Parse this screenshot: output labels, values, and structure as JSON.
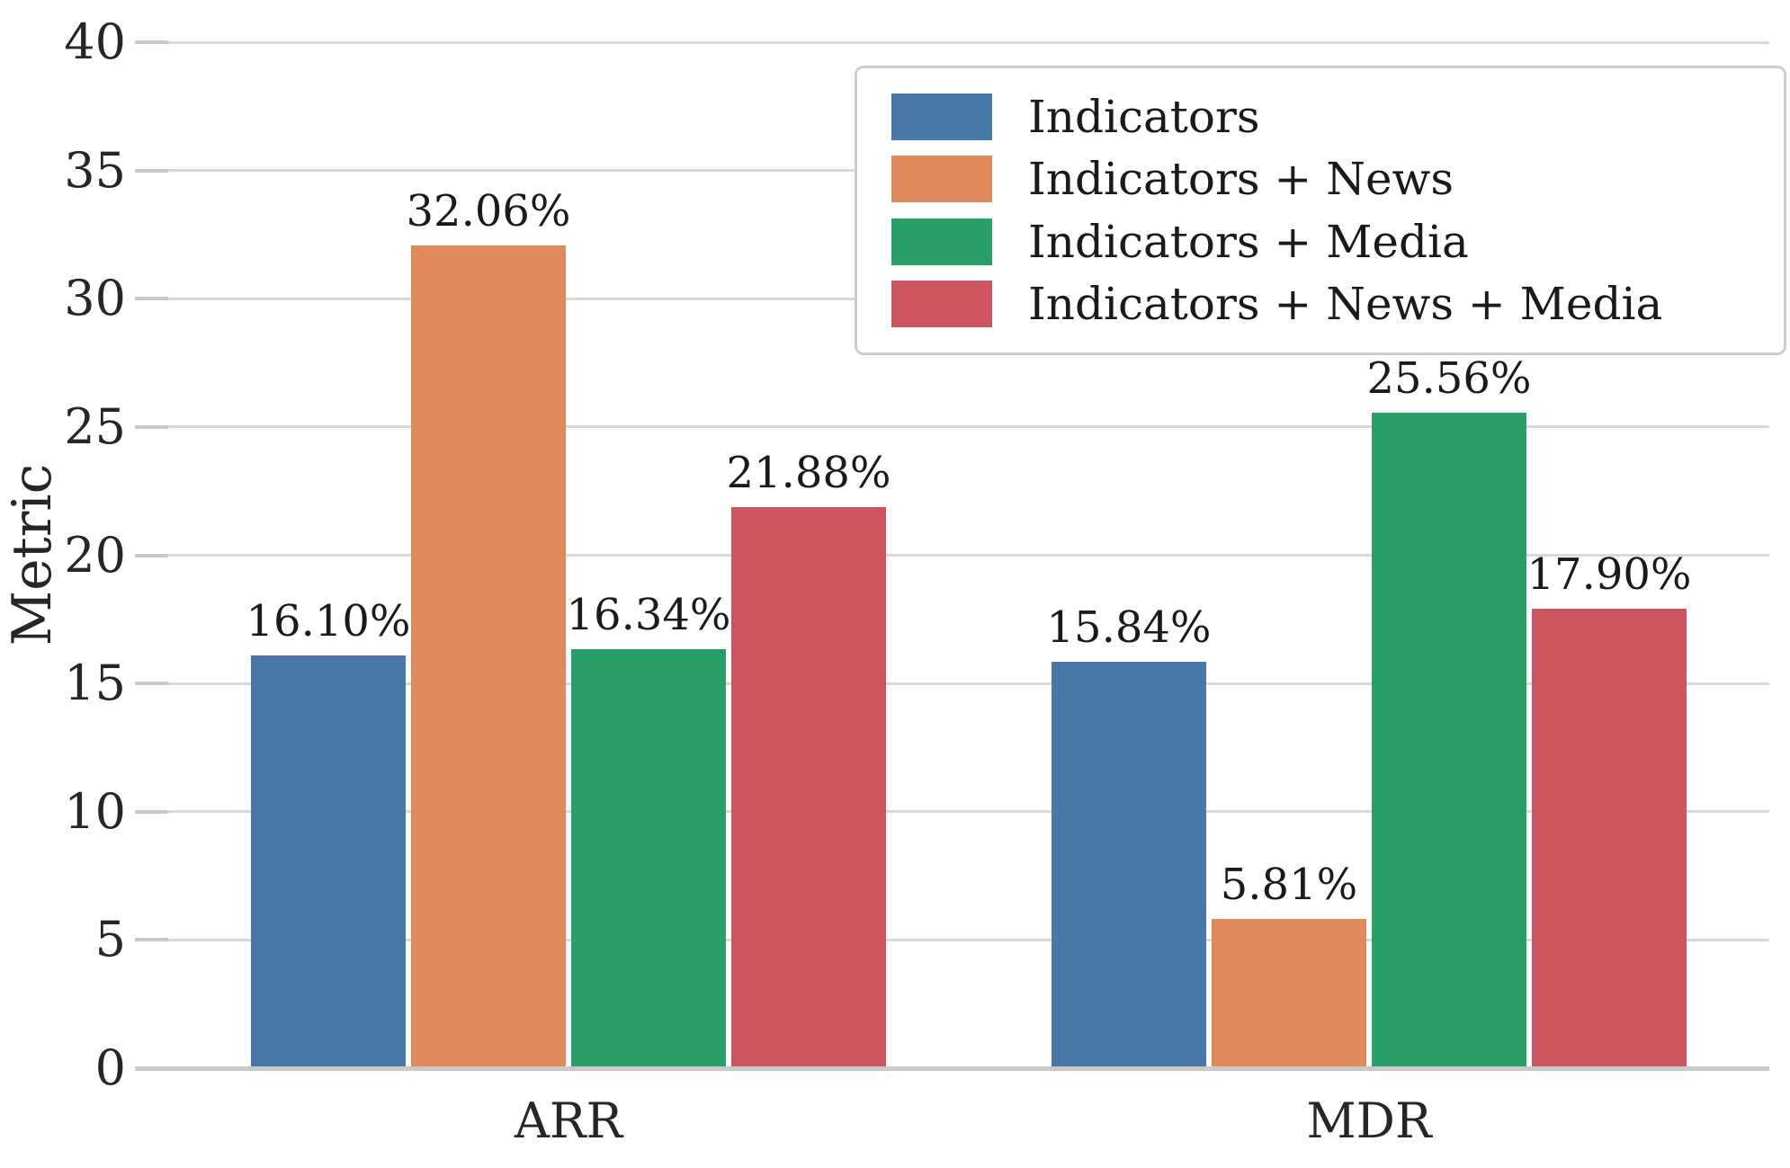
{
  "chart_data": {
    "type": "bar",
    "title": "",
    "categories": [
      "ARR",
      "MDR"
    ],
    "series": [
      {
        "name": "Indicators",
        "color": "#4878a8",
        "values": [
          16.1,
          15.84
        ],
        "labels": [
          "16.10%",
          "15.84%"
        ]
      },
      {
        "name": "Indicators + News",
        "color": "#e08a5c",
        "values": [
          32.06,
          5.81
        ],
        "labels": [
          "32.06%",
          "5.81%"
        ]
      },
      {
        "name": "Indicators + Media",
        "color": "#2aa069",
        "values": [
          16.34,
          25.56
        ],
        "labels": [
          "16.34%",
          "25.56%"
        ]
      },
      {
        "name": "Indicators + News + Media",
        "color": "#cc555f",
        "values": [
          21.88,
          17.9
        ],
        "labels": [
          "21.88%",
          "17.90%"
        ]
      }
    ],
    "xlabel": "",
    "ylabel": "Metric",
    "ylim": [
      0,
      40
    ],
    "yticks": [
      0,
      5,
      10,
      15,
      20,
      25,
      30,
      35,
      40
    ],
    "grid": true,
    "legend_position": "upper right",
    "grid_color": "#d9d9d9",
    "axis_color": "#c9c9c9",
    "text_color": "#262626",
    "label_color": "#1a1a1a",
    "background_color": "#ffffff"
  }
}
